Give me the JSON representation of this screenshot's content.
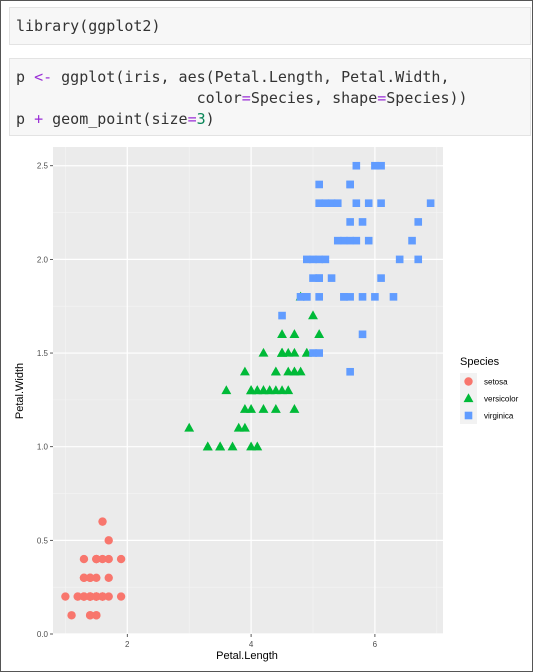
{
  "code_cells": [
    {
      "lines": [
        [
          {
            "t": "library(ggplot2)",
            "c": ""
          }
        ]
      ]
    },
    {
      "lines": [
        [
          {
            "t": "p ",
            "c": ""
          },
          {
            "t": "<-",
            "c": "op"
          },
          {
            "t": " ggplot(iris, aes(Petal.Length, Petal.Width,",
            "c": ""
          }
        ],
        [
          {
            "t": "                    color",
            "c": ""
          },
          {
            "t": "=",
            "c": "op"
          },
          {
            "t": "Species, shape",
            "c": ""
          },
          {
            "t": "=",
            "c": "op"
          },
          {
            "t": "Species))",
            "c": ""
          }
        ],
        [
          {
            "t": "p ",
            "c": ""
          },
          {
            "t": "+",
            "c": "op"
          },
          {
            "t": " geom_point(size",
            "c": ""
          },
          {
            "t": "=",
            "c": "op"
          },
          {
            "t": "3",
            "c": "num"
          },
          {
            "t": ")",
            "c": ""
          }
        ]
      ]
    }
  ],
  "chart_data": {
    "type": "scatter",
    "title": "",
    "xlabel": "Petal.Length",
    "ylabel": "Petal.Width",
    "xlim": [
      0.8,
      7.1
    ],
    "ylim": [
      0.0,
      2.6
    ],
    "x_ticks": [
      2,
      4,
      6
    ],
    "x_tick_labels": [
      "2",
      "4",
      "6"
    ],
    "y_ticks": [
      0.0,
      0.5,
      1.0,
      1.5,
      2.0,
      2.5
    ],
    "y_tick_labels": [
      "0.0",
      "0.5",
      "1.0",
      "1.5",
      "2.0",
      "2.5"
    ],
    "grid": true,
    "legend_position": "right",
    "legend_title": "Species",
    "series": [
      {
        "name": "setosa",
        "shape": "circle",
        "color": "#F8766D",
        "points": [
          [
            1.4,
            0.2
          ],
          [
            1.4,
            0.2
          ],
          [
            1.3,
            0.2
          ],
          [
            1.5,
            0.2
          ],
          [
            1.4,
            0.2
          ],
          [
            1.7,
            0.4
          ],
          [
            1.4,
            0.3
          ],
          [
            1.5,
            0.2
          ],
          [
            1.4,
            0.2
          ],
          [
            1.5,
            0.1
          ],
          [
            1.5,
            0.2
          ],
          [
            1.6,
            0.2
          ],
          [
            1.4,
            0.1
          ],
          [
            1.1,
            0.1
          ],
          [
            1.2,
            0.2
          ],
          [
            1.5,
            0.4
          ],
          [
            1.3,
            0.4
          ],
          [
            1.4,
            0.3
          ],
          [
            1.7,
            0.3
          ],
          [
            1.5,
            0.3
          ],
          [
            1.7,
            0.2
          ],
          [
            1.5,
            0.4
          ],
          [
            1.0,
            0.2
          ],
          [
            1.7,
            0.5
          ],
          [
            1.9,
            0.2
          ],
          [
            1.6,
            0.2
          ],
          [
            1.6,
            0.4
          ],
          [
            1.5,
            0.2
          ],
          [
            1.4,
            0.2
          ],
          [
            1.6,
            0.2
          ],
          [
            1.6,
            0.2
          ],
          [
            1.5,
            0.4
          ],
          [
            1.5,
            0.1
          ],
          [
            1.4,
            0.2
          ],
          [
            1.5,
            0.2
          ],
          [
            1.2,
            0.2
          ],
          [
            1.3,
            0.2
          ],
          [
            1.4,
            0.1
          ],
          [
            1.3,
            0.2
          ],
          [
            1.5,
            0.2
          ],
          [
            1.3,
            0.3
          ],
          [
            1.3,
            0.3
          ],
          [
            1.3,
            0.2
          ],
          [
            1.6,
            0.6
          ],
          [
            1.9,
            0.4
          ],
          [
            1.4,
            0.3
          ],
          [
            1.6,
            0.2
          ],
          [
            1.4,
            0.2
          ],
          [
            1.5,
            0.2
          ],
          [
            1.4,
            0.2
          ]
        ]
      },
      {
        "name": "versicolor",
        "shape": "triangle",
        "color": "#00BA38",
        "points": [
          [
            4.7,
            1.4
          ],
          [
            4.5,
            1.5
          ],
          [
            4.9,
            1.5
          ],
          [
            4.0,
            1.3
          ],
          [
            4.6,
            1.5
          ],
          [
            4.5,
            1.3
          ],
          [
            4.7,
            1.6
          ],
          [
            3.3,
            1.0
          ],
          [
            4.6,
            1.3
          ],
          [
            3.9,
            1.4
          ],
          [
            3.5,
            1.0
          ],
          [
            4.2,
            1.5
          ],
          [
            4.0,
            1.0
          ],
          [
            4.7,
            1.4
          ],
          [
            3.6,
            1.3
          ],
          [
            4.4,
            1.4
          ],
          [
            4.5,
            1.5
          ],
          [
            4.1,
            1.0
          ],
          [
            4.5,
            1.5
          ],
          [
            3.9,
            1.1
          ],
          [
            4.8,
            1.8
          ],
          [
            4.0,
            1.3
          ],
          [
            4.9,
            1.5
          ],
          [
            4.7,
            1.2
          ],
          [
            4.3,
            1.3
          ],
          [
            4.4,
            1.4
          ],
          [
            4.8,
            1.4
          ],
          [
            5.0,
            1.7
          ],
          [
            4.5,
            1.5
          ],
          [
            3.5,
            1.0
          ],
          [
            3.8,
            1.1
          ],
          [
            3.7,
            1.0
          ],
          [
            3.9,
            1.2
          ],
          [
            5.1,
            1.6
          ],
          [
            4.5,
            1.5
          ],
          [
            4.5,
            1.6
          ],
          [
            4.7,
            1.5
          ],
          [
            4.4,
            1.3
          ],
          [
            4.1,
            1.3
          ],
          [
            4.0,
            1.3
          ],
          [
            4.4,
            1.2
          ],
          [
            4.6,
            1.4
          ],
          [
            4.0,
            1.2
          ],
          [
            3.3,
            1.0
          ],
          [
            4.2,
            1.3
          ],
          [
            4.2,
            1.2
          ],
          [
            4.2,
            1.3
          ],
          [
            4.3,
            1.3
          ],
          [
            3.0,
            1.1
          ],
          [
            4.1,
            1.3
          ]
        ]
      },
      {
        "name": "virginica",
        "shape": "square",
        "color": "#619CFF",
        "points": [
          [
            6.0,
            2.5
          ],
          [
            5.1,
            1.9
          ],
          [
            5.9,
            2.1
          ],
          [
            5.6,
            1.8
          ],
          [
            5.8,
            2.2
          ],
          [
            6.6,
            2.1
          ],
          [
            4.5,
            1.7
          ],
          [
            6.3,
            1.8
          ],
          [
            5.8,
            1.8
          ],
          [
            6.1,
            2.5
          ],
          [
            5.1,
            2.0
          ],
          [
            5.3,
            1.9
          ],
          [
            5.5,
            2.1
          ],
          [
            5.0,
            2.0
          ],
          [
            5.1,
            2.4
          ],
          [
            5.3,
            2.3
          ],
          [
            5.5,
            1.8
          ],
          [
            6.7,
            2.2
          ],
          [
            6.9,
            2.3
          ],
          [
            5.0,
            1.5
          ],
          [
            5.7,
            2.3
          ],
          [
            4.9,
            2.0
          ],
          [
            6.7,
            2.0
          ],
          [
            4.9,
            1.8
          ],
          [
            5.7,
            2.1
          ],
          [
            6.0,
            1.8
          ],
          [
            4.8,
            1.8
          ],
          [
            4.9,
            1.8
          ],
          [
            5.6,
            2.1
          ],
          [
            5.8,
            1.6
          ],
          [
            6.1,
            1.9
          ],
          [
            6.4,
            2.0
          ],
          [
            5.6,
            2.2
          ],
          [
            5.1,
            1.5
          ],
          [
            5.6,
            1.4
          ],
          [
            6.1,
            2.3
          ],
          [
            5.6,
            2.4
          ],
          [
            5.5,
            1.8
          ],
          [
            4.8,
            1.8
          ],
          [
            5.4,
            2.1
          ],
          [
            5.6,
            2.4
          ],
          [
            5.1,
            2.3
          ],
          [
            5.1,
            1.9
          ],
          [
            5.9,
            2.3
          ],
          [
            5.7,
            2.5
          ],
          [
            5.2,
            2.3
          ],
          [
            5.0,
            1.9
          ],
          [
            5.2,
            2.0
          ],
          [
            5.4,
            2.3
          ],
          [
            5.1,
            1.8
          ]
        ]
      }
    ]
  },
  "colors": {
    "panel_bg": "#EBEBEB",
    "grid_major": "#FFFFFF",
    "axis_text": "#4D4D4D",
    "code_bg": "#F7F7F7",
    "code_op": "#9A2ED6",
    "code_num": "#098658"
  }
}
